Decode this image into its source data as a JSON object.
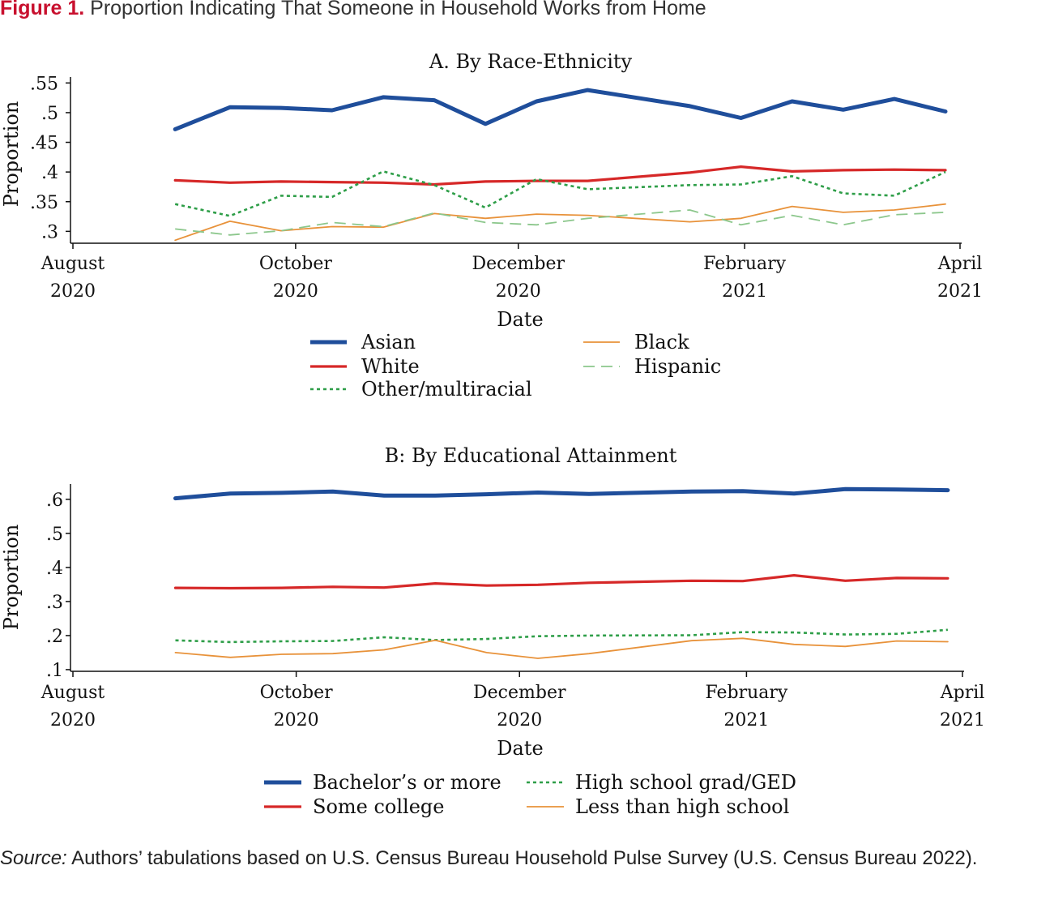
{
  "figure": {
    "number": "Figure 1.",
    "title": "Proportion Indicating That Someone in Household Works from Home"
  },
  "source": {
    "label": "Source:",
    "text": " Authors’ tabulations based on U.S. Census Bureau Household Pulse Survey (U.S. Census Bureau 2022)."
  },
  "colors": {
    "blue": "#1f4e9b",
    "red": "#d62828",
    "green": "#2e9e48",
    "orange": "#e8923a",
    "lightgreen": "#8cc78c"
  },
  "chart_data": [
    {
      "type": "line",
      "title": "A. By Race-Ethnicity",
      "xlabel": "Date",
      "ylabel": "Proportion",
      "xlim": [
        "2020-08-01",
        "2021-04-01"
      ],
      "ylim": [
        0.28,
        0.56
      ],
      "y_ticks": [
        ".3",
        ".35",
        ".4",
        ".45",
        ".5",
        ".55"
      ],
      "y_tick_values": [
        0.3,
        0.35,
        0.4,
        0.45,
        0.5,
        0.55
      ],
      "x_ticks": [
        {
          "date": "2020-08-01",
          "line1": "August",
          "line2": "2020"
        },
        {
          "date": "2020-10-01",
          "line1": "October",
          "line2": "2020"
        },
        {
          "date": "2020-12-01",
          "line1": "December",
          "line2": "2020"
        },
        {
          "date": "2021-02-01",
          "line1": "February",
          "line2": "2021"
        },
        {
          "date": "2021-04-01",
          "line1": "April",
          "line2": "2021"
        }
      ],
      "x": [
        "2020-08-29",
        "2020-09-13",
        "2020-09-27",
        "2020-10-11",
        "2020-10-25",
        "2020-11-08",
        "2020-11-22",
        "2020-12-06",
        "2020-12-20",
        "2021-01-03",
        "2021-01-17",
        "2021-01-31",
        "2021-02-14",
        "2021-02-28",
        "2021-03-14",
        "2021-03-28"
      ],
      "grid": false,
      "legend_placement": "bottom",
      "legend": [
        {
          "series": 0,
          "col": 0,
          "row": 0
        },
        {
          "series": 1,
          "col": 0,
          "row": 1
        },
        {
          "series": 2,
          "col": 0,
          "row": 2
        },
        {
          "series": 3,
          "col": 1,
          "row": 0
        },
        {
          "series": 4,
          "col": 1,
          "row": 1
        }
      ],
      "series": [
        {
          "name": "Asian",
          "color": "#1f4e9b",
          "style": "solid-thick",
          "x": [
            "2020-08-29",
            "2020-09-13",
            "2020-09-27",
            "2020-10-11",
            "2020-10-25",
            "2020-11-08",
            "2020-11-22",
            "2020-12-06",
            "2020-12-20",
            "2021-01-17",
            "2021-01-31",
            "2021-02-14",
            "2021-02-28",
            "2021-03-14",
            "2021-03-28"
          ],
          "values": [
            0.472,
            0.509,
            0.508,
            0.504,
            0.526,
            0.521,
            0.481,
            0.519,
            0.538,
            0.511,
            0.491,
            0.519,
            0.505,
            0.523,
            0.502
          ]
        },
        {
          "name": "White",
          "color": "#d62828",
          "style": "solid",
          "x": [
            "2020-08-29",
            "2020-09-13",
            "2020-09-27",
            "2020-10-11",
            "2020-10-25",
            "2020-11-08",
            "2020-11-22",
            "2020-12-06",
            "2020-12-20",
            "2021-01-17",
            "2021-01-31",
            "2021-02-14",
            "2021-02-28",
            "2021-03-14",
            "2021-03-28"
          ],
          "values": [
            0.386,
            0.382,
            0.384,
            0.383,
            0.382,
            0.379,
            0.384,
            0.385,
            0.385,
            0.399,
            0.409,
            0.401,
            0.403,
            0.404,
            0.403
          ]
        },
        {
          "name": "Other/multiracial",
          "color": "#2e9e48",
          "style": "dotted",
          "x": [
            "2020-08-29",
            "2020-09-13",
            "2020-09-27",
            "2020-10-11",
            "2020-10-25",
            "2020-11-08",
            "2020-11-22",
            "2020-12-06",
            "2020-12-20",
            "2021-01-17",
            "2021-01-31",
            "2021-02-14",
            "2021-02-28",
            "2021-03-14",
            "2021-03-28"
          ],
          "values": [
            0.346,
            0.326,
            0.36,
            0.358,
            0.401,
            0.378,
            0.34,
            0.388,
            0.371,
            0.378,
            0.379,
            0.393,
            0.364,
            0.36,
            0.4
          ]
        },
        {
          "name": "Black",
          "color": "#e8923a",
          "style": "solid-thin",
          "x": [
            "2020-08-29",
            "2020-09-13",
            "2020-09-27",
            "2020-10-11",
            "2020-10-25",
            "2020-11-08",
            "2020-11-22",
            "2020-12-06",
            "2020-12-20",
            "2021-01-17",
            "2021-01-31",
            "2021-02-14",
            "2021-02-28",
            "2021-03-14",
            "2021-03-28"
          ],
          "values": [
            0.285,
            0.317,
            0.301,
            0.308,
            0.307,
            0.33,
            0.322,
            0.329,
            0.327,
            0.316,
            0.322,
            0.342,
            0.332,
            0.336,
            0.346
          ]
        },
        {
          "name": "Hispanic",
          "color": "#8cc78c",
          "style": "dashed",
          "x": [
            "2020-08-29",
            "2020-09-13",
            "2020-09-27",
            "2020-10-11",
            "2020-10-25",
            "2020-11-08",
            "2020-11-22",
            "2020-12-06",
            "2020-12-20",
            "2021-01-17",
            "2021-01-31",
            "2021-02-14",
            "2021-02-28",
            "2021-03-14",
            "2021-03-28"
          ],
          "values": [
            0.304,
            0.294,
            0.301,
            0.315,
            0.308,
            0.331,
            0.315,
            0.311,
            0.322,
            0.336,
            0.311,
            0.327,
            0.311,
            0.328,
            0.332
          ]
        }
      ]
    },
    {
      "type": "line",
      "title": "B: By Educational Attainment",
      "xlabel": "Date",
      "ylabel": "Proportion",
      "xlim": [
        "2020-08-01",
        "2021-04-01"
      ],
      "ylim": [
        0.095,
        0.645
      ],
      "y_ticks": [
        ".1",
        ".2",
        ".3",
        ".4",
        ".5",
        ".6"
      ],
      "y_tick_values": [
        0.1,
        0.2,
        0.3,
        0.4,
        0.5,
        0.6
      ],
      "x_ticks": [
        {
          "date": "2020-08-01",
          "line1": "August",
          "line2": "2020"
        },
        {
          "date": "2020-10-01",
          "line1": "October",
          "line2": "2020"
        },
        {
          "date": "2020-12-01",
          "line1": "December",
          "line2": "2020"
        },
        {
          "date": "2021-02-01",
          "line1": "February",
          "line2": "2021"
        },
        {
          "date": "2021-04-01",
          "line1": "April",
          "line2": "2021"
        }
      ],
      "grid": false,
      "legend_placement": "bottom",
      "legend": [
        {
          "series": 0,
          "col": 0,
          "row": 0
        },
        {
          "series": 1,
          "col": 0,
          "row": 1
        },
        {
          "series": 2,
          "col": 1,
          "row": 0
        },
        {
          "series": 3,
          "col": 1,
          "row": 1
        }
      ],
      "series": [
        {
          "name": "Bachelor’s or more",
          "color": "#1f4e9b",
          "style": "solid-thick",
          "x": [
            "2020-08-29",
            "2020-09-13",
            "2020-09-27",
            "2020-10-11",
            "2020-10-25",
            "2020-11-08",
            "2020-11-22",
            "2020-12-06",
            "2020-12-20",
            "2021-01-17",
            "2021-01-31",
            "2021-02-14",
            "2021-02-28",
            "2021-03-14",
            "2021-03-28"
          ],
          "values": [
            0.603,
            0.617,
            0.619,
            0.623,
            0.611,
            0.611,
            0.615,
            0.62,
            0.616,
            0.623,
            0.624,
            0.617,
            0.63,
            0.629,
            0.627
          ]
        },
        {
          "name": "Some college",
          "color": "#d62828",
          "style": "solid",
          "x": [
            "2020-08-29",
            "2020-09-13",
            "2020-09-27",
            "2020-10-11",
            "2020-10-25",
            "2020-11-08",
            "2020-11-22",
            "2020-12-06",
            "2020-12-20",
            "2021-01-17",
            "2021-01-31",
            "2021-02-14",
            "2021-02-28",
            "2021-03-14",
            "2021-03-28"
          ],
          "values": [
            0.34,
            0.339,
            0.34,
            0.343,
            0.341,
            0.353,
            0.347,
            0.349,
            0.355,
            0.361,
            0.36,
            0.377,
            0.361,
            0.369,
            0.368
          ]
        },
        {
          "name": "High school grad/GED",
          "color": "#2e9e48",
          "style": "dotted",
          "x": [
            "2020-08-29",
            "2020-09-13",
            "2020-09-27",
            "2020-10-11",
            "2020-10-25",
            "2020-11-08",
            "2020-11-22",
            "2020-12-06",
            "2020-12-20",
            "2021-01-17",
            "2021-01-31",
            "2021-02-14",
            "2021-02-28",
            "2021-03-14",
            "2021-03-28"
          ],
          "values": [
            0.186,
            0.181,
            0.183,
            0.184,
            0.195,
            0.187,
            0.19,
            0.198,
            0.2,
            0.201,
            0.21,
            0.209,
            0.203,
            0.205,
            0.217
          ]
        },
        {
          "name": "Less than high school",
          "color": "#e8923a",
          "style": "solid-thin",
          "x": [
            "2020-08-29",
            "2020-09-13",
            "2020-09-27",
            "2020-10-11",
            "2020-10-25",
            "2020-11-08",
            "2020-11-22",
            "2020-12-06",
            "2020-12-20",
            "2021-01-17",
            "2021-01-31",
            "2021-02-14",
            "2021-02-28",
            "2021-03-14",
            "2021-03-28"
          ],
          "values": [
            0.15,
            0.136,
            0.145,
            0.147,
            0.158,
            0.186,
            0.15,
            0.133,
            0.147,
            0.185,
            0.192,
            0.174,
            0.168,
            0.184,
            0.182
          ]
        }
      ]
    }
  ]
}
